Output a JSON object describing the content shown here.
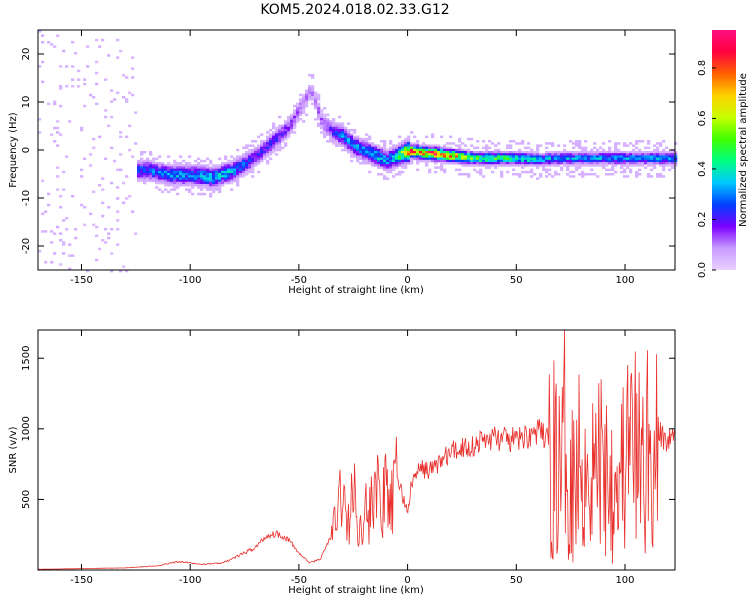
{
  "title": "KOM5.2024.018.02.33.G12",
  "chart_data": [
    {
      "type": "heatmap",
      "xlabel": "Height of straight line (km)",
      "ylabel": "Frequency (Hz)",
      "xlim": [
        -170,
        123
      ],
      "ylim": [
        -25,
        25
      ],
      "xticks": [
        -150,
        -100,
        -50,
        0,
        50,
        100
      ],
      "yticks": [
        -20,
        -10,
        0,
        10,
        20
      ],
      "colorbar": {
        "label": "Normalized spectral amplitude",
        "range": [
          0,
          0.95
        ],
        "ticks": [
          "0.0",
          "0.2",
          "0.4",
          "0.6",
          "0.8"
        ],
        "colors": [
          "#e8d0ff",
          "#c99bff",
          "#7a00ff",
          "#0040ff",
          "#00c8ff",
          "#00ff80",
          "#40ff00",
          "#c8ff00",
          "#ffd000",
          "#ff6000",
          "#ff0040",
          "#ff1080"
        ]
      },
      "ridge": {
        "x": [
          -120,
          -110,
          -100,
          -90,
          -80,
          -70,
          -60,
          -55,
          -50,
          -45,
          -40,
          -35,
          -30,
          -25,
          -20,
          -15,
          -10,
          -5,
          0,
          10,
          20,
          30,
          40,
          50,
          60,
          70,
          80,
          90,
          100,
          110,
          123
        ],
        "freq": [
          -4,
          -5,
          -5,
          -5.5,
          -4,
          -1,
          3,
          5,
          9,
          13,
          6,
          4,
          3,
          1,
          0,
          -1,
          -2,
          -1,
          0,
          -0.5,
          -1,
          -1.5,
          -1.5,
          -1.5,
          -1.8,
          -1.5,
          -1.5,
          -1.5,
          -1.5,
          -1.5,
          -1.5
        ],
        "amplitude": [
          0.25,
          0.3,
          0.3,
          0.35,
          0.3,
          0.2,
          0.2,
          0.15,
          0.12,
          0.1,
          0.12,
          0.2,
          0.3,
          0.3,
          0.3,
          0.35,
          0.3,
          0.4,
          0.75,
          0.8,
          0.7,
          0.45,
          0.45,
          0.4,
          0.35,
          0.3,
          0.3,
          0.3,
          0.3,
          0.3,
          0.3
        ]
      }
    },
    {
      "type": "line",
      "xlabel": "Height of straight line (km)",
      "ylabel": "SNR (v/v)",
      "xlim": [
        -170,
        123
      ],
      "ylim": [
        0,
        1700
      ],
      "xticks": [
        -150,
        -100,
        -50,
        0,
        50,
        100
      ],
      "yticks": [
        500,
        1000,
        1500
      ],
      "color": "#e8302c",
      "series": [
        {
          "x": [
            -170,
            -150,
            -130,
            -115,
            -105,
            -95,
            -85,
            -75,
            -70,
            -65,
            -60,
            -55,
            -50,
            -45,
            -40,
            -35,
            -32,
            -30,
            -28,
            -25,
            -22,
            -20,
            -18,
            -15,
            -12,
            -10,
            -8,
            -5,
            -2,
            0,
            2,
            5,
            8,
            10,
            15,
            20,
            25,
            30,
            35,
            40,
            45,
            50,
            55,
            60,
            65,
            68,
            70,
            72,
            75,
            80,
            85,
            90,
            95,
            100,
            103,
            105,
            108,
            110,
            112,
            115,
            118,
            123
          ],
          "y": [
            5,
            10,
            15,
            30,
            60,
            40,
            50,
            120,
            160,
            240,
            260,
            220,
            120,
            50,
            80,
            250,
            450,
            700,
            300,
            620,
            280,
            560,
            350,
            760,
            420,
            650,
            450,
            700,
            500,
            420,
            620,
            700,
            720,
            700,
            770,
            830,
            870,
            880,
            920,
            940,
            920,
            920,
            950,
            980,
            920,
            1000,
            850,
            1150,
            900,
            980,
            900,
            1000,
            850,
            950,
            1100,
            1000,
            900,
            1100,
            950,
            1000,
            920,
            930
          ]
        }
      ]
    }
  ]
}
